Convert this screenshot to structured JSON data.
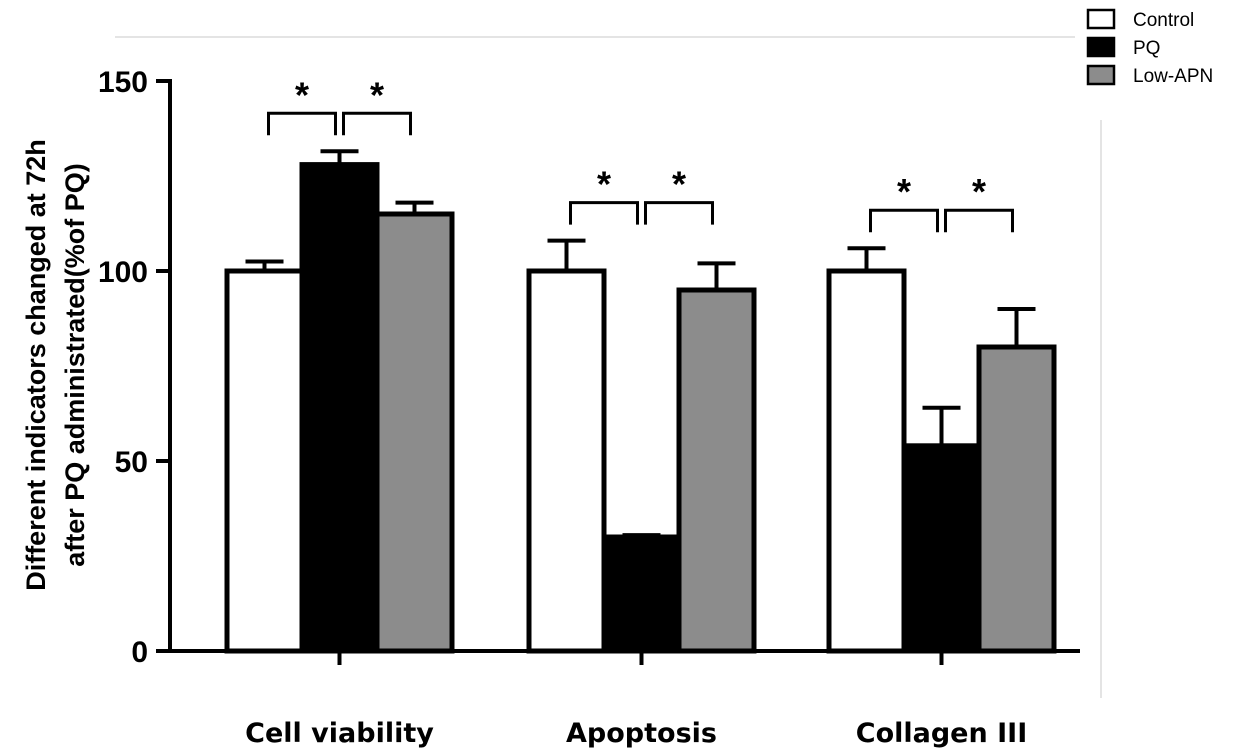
{
  "chart_data": {
    "type": "bar",
    "title": "",
    "ylabel_lines": [
      "Different indicators changed at 72h",
      "after PQ administrated(%of PQ)"
    ],
    "xlabel": "",
    "ylim": [
      0,
      150
    ],
    "yticks": [
      0,
      50,
      100,
      150
    ],
    "categories": [
      "Cell viability",
      "Apoptosis",
      "Collagen III"
    ],
    "series": [
      {
        "name": "Control",
        "values": [
          100,
          100,
          100
        ],
        "errors": [
          2.5,
          8,
          6
        ],
        "color": "#ffffff"
      },
      {
        "name": "PQ",
        "values": [
          128,
          30,
          54
        ],
        "errors": [
          3.5,
          0.5,
          10
        ],
        "color": "#000000"
      },
      {
        "name": "Low-APN",
        "values": [
          115,
          95,
          80
        ],
        "errors": [
          3,
          7,
          10
        ],
        "color": "#8c8c8c"
      }
    ],
    "significance": [
      {
        "category": 0,
        "pairs": [
          [
            0,
            1
          ],
          [
            1,
            2
          ]
        ],
        "label": "*"
      },
      {
        "category": 1,
        "pairs": [
          [
            0,
            1
          ],
          [
            1,
            2
          ]
        ],
        "label": "*"
      },
      {
        "category": 2,
        "pairs": [
          [
            0,
            1
          ],
          [
            1,
            2
          ]
        ],
        "label": "*"
      }
    ],
    "legend_position": "top-right",
    "grid": false
  }
}
